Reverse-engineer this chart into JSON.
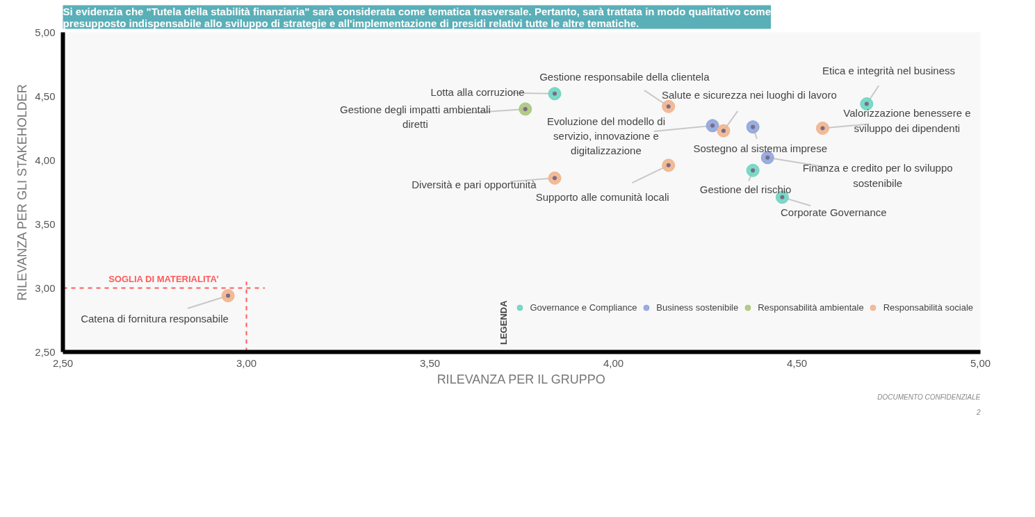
{
  "chart_data": {
    "type": "scatter",
    "title": "Si evidenzia che \"Tutela della stabilità finanziaria\" sarà considerata come tematica trasversale. Pertanto, sarà trattata in modo qualitativo come presupposto indispensabile allo sviluppo di strategie e all'implementazione di presidi relativi tutte le altre tematiche.",
    "xlabel": "RILEVANZA PER IL GRUPPO",
    "ylabel": "RILEVANZA PER GLI STAKEHOLDER",
    "legend_title": "LEGENDA",
    "legend": "bottom right",
    "marker": "circle",
    "grid": false,
    "xlim": [
      2.5,
      5.0
    ],
    "ylim": [
      2.5,
      5.0
    ],
    "xticks": [
      {
        "value": 2.5,
        "label": "2,50"
      },
      {
        "value": 3.0,
        "label": "3,00"
      },
      {
        "value": 3.5,
        "label": "3,50"
      },
      {
        "value": 4.0,
        "label": "4,00"
      },
      {
        "value": 4.5,
        "label": "4,50"
      },
      {
        "value": 5.0,
        "label": "5,00"
      }
    ],
    "yticks": [
      {
        "value": 2.5,
        "label": "2,50"
      },
      {
        "value": 3.0,
        "label": "3,00"
      },
      {
        "value": 3.5,
        "label": "3,50"
      },
      {
        "value": 4.0,
        "label": "4,00"
      },
      {
        "value": 4.5,
        "label": "4,50"
      },
      {
        "value": 5.0,
        "label": "5,00"
      }
    ],
    "series": [
      {
        "name": "Governance e Compliance",
        "color": "#6dd5c0",
        "x": [
          3.84,
          4.69,
          4.38,
          4.46
        ],
        "values": [
          4.52,
          4.44,
          3.92,
          3.71
        ]
      },
      {
        "name": "Business sostenibile",
        "color": "#8ea4dc",
        "x": [
          4.27,
          4.38,
          4.42
        ],
        "values": [
          4.27,
          4.26,
          4.02
        ]
      },
      {
        "name": "Responsabilità ambientale",
        "color": "#a9c77a",
        "x": [
          3.76
        ],
        "values": [
          4.4
        ]
      },
      {
        "name": "Responsabilità sociale",
        "color": "#f0b48c",
        "x": [
          4.15,
          4.3,
          4.57,
          3.84,
          4.15,
          2.95
        ],
        "values": [
          4.42,
          4.23,
          4.25,
          3.86,
          3.96,
          2.94
        ]
      }
    ],
    "ref_lines": [
      {
        "axis": "y",
        "value": 3.0,
        "label": "SOGLIA DI MATERIALITA’",
        "color": "#ff5a5a",
        "line_style": "dashed"
      },
      {
        "axis": "x",
        "value": 3.0,
        "label": null,
        "color": "#ff5a5a",
        "line_style": "dashed"
      }
    ],
    "annotations": [
      {
        "text": "Lotta alla corruzione",
        "x": 3.84,
        "y": 4.52
      },
      {
        "text": "Etica e integrità nel business",
        "x": 4.69,
        "y": 4.44
      },
      {
        "text": "Gestione del rischio",
        "x": 4.38,
        "y": 3.92
      },
      {
        "text": "Corporate Governance",
        "x": 4.46,
        "y": 3.71
      },
      {
        "text": "Evoluzione del modello di servizio, innovazione e digitalizzazione",
        "x": 4.27,
        "y": 4.27
      },
      {
        "text": "Sostegno al sistema imprese",
        "x": 4.38,
        "y": 4.26
      },
      {
        "text": "Finanza e credito per lo sviluppo sostenibile",
        "x": 4.42,
        "y": 4.02
      },
      {
        "text": "Gestione degli impatti ambientali diretti",
        "x": 3.76,
        "y": 4.4
      },
      {
        "text": "Gestione responsabile della clientela",
        "x": 4.15,
        "y": 4.42
      },
      {
        "text": "Salute e sicurezza nei luoghi di lavoro",
        "x": 4.3,
        "y": 4.23
      },
      {
        "text": "Valorizzazione benessere e sviluppo dei dipendenti",
        "x": 4.57,
        "y": 4.25
      },
      {
        "text": "Diversità e pari opportunità",
        "x": 3.84,
        "y": 3.86
      },
      {
        "text": "Supporto alle comunità locali",
        "x": 4.15,
        "y": 3.96
      },
      {
        "text": "Catena di fornitura responsabile",
        "x": 2.95,
        "y": 2.94
      },
      "DOCUMENTO CONFIDENZIALE",
      "2"
    ]
  }
}
